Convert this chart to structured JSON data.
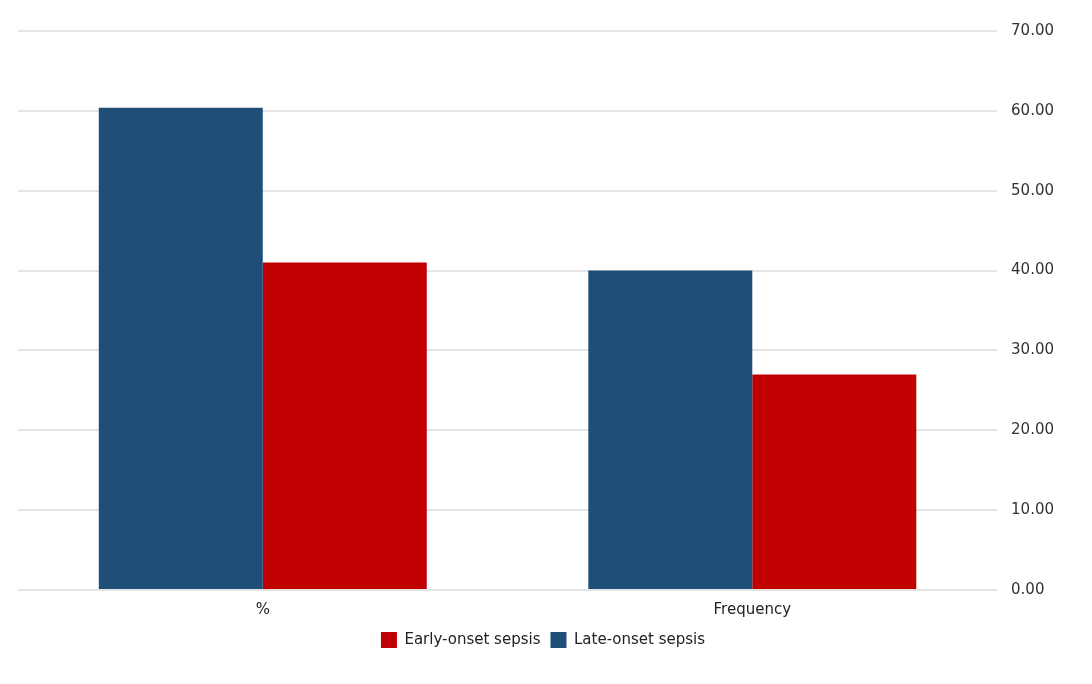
{
  "chart_data": {
    "type": "bar",
    "categories": [
      "%",
      "Frequency"
    ],
    "series": [
      {
        "name": "Late-onset sepsis",
        "color": "#1f4e79",
        "values": [
          60.4,
          40
        ]
      },
      {
        "name": "Early-onset sepsis",
        "color": "#c00000",
        "values": [
          41,
          27
        ]
      }
    ],
    "ylim": [
      0,
      70
    ],
    "yticks": [
      {
        "value": 0,
        "label": "0.00"
      },
      {
        "value": 10,
        "label": "10.00"
      },
      {
        "value": 20,
        "label": "20.00"
      },
      {
        "value": 30,
        "label": "30.00"
      },
      {
        "value": 40,
        "label": "40.00"
      },
      {
        "value": 50,
        "label": "50.00"
      },
      {
        "value": 60,
        "label": "60.00"
      },
      {
        "value": 70,
        "label": "70.00"
      }
    ],
    "grid": "y",
    "legend": "bottom"
  }
}
